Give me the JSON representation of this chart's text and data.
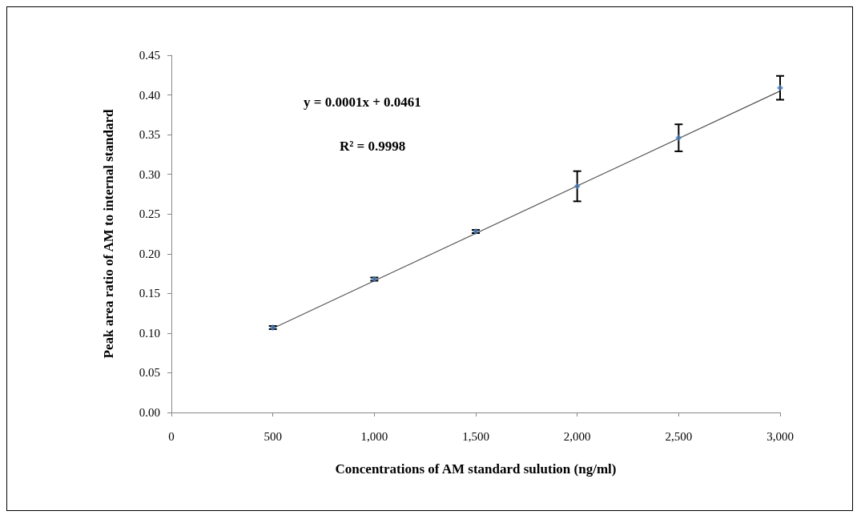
{
  "chart_data": {
    "type": "scatter",
    "xlabel": "Concentrations of AM standard sulution (ng/ml)",
    "ylabel": "Peak area ratio of AM to internal standard",
    "annotations": [
      "y = 0.0001x + 0.0461",
      "R² = 0.9998"
    ],
    "series": [
      {
        "color": "#4f81bd",
        "marker": "diamond",
        "x": [
          500,
          1000,
          1500,
          2000,
          2500,
          3000
        ],
        "values": [
          0.107,
          0.168,
          0.228,
          0.285,
          0.346,
          0.409
        ],
        "errors": [
          0.002,
          0.002,
          0.002,
          0.019,
          0.017,
          0.015
        ]
      },
      {
        "type": "line",
        "color": "#555555",
        "marker": "none",
        "x": [
          500,
          3000
        ],
        "values": [
          0.106,
          0.405
        ]
      }
    ],
    "xlim": [
      0,
      3000
    ],
    "xticks": [
      0,
      500,
      {
        "value": 1000,
        "label": "1,000"
      },
      {
        "value": 1500,
        "label": "1,500"
      },
      {
        "value": 2000,
        "label": "2,000"
      },
      {
        "value": 2500,
        "label": "2,500"
      },
      {
        "value": 3000,
        "label": "3,000"
      }
    ],
    "ylim": [
      0,
      0.45
    ],
    "yticks": [
      {
        "value": 0,
        "label": "0.00"
      },
      {
        "value": 0.05,
        "label": "0.05"
      },
      {
        "value": 0.1,
        "label": "0.10"
      },
      {
        "value": 0.15,
        "label": "0.15"
      },
      {
        "value": 0.2,
        "label": "0.20"
      },
      {
        "value": 0.25,
        "label": "0.25"
      },
      {
        "value": 0.3,
        "label": "0.30"
      },
      {
        "value": 0.35,
        "label": "0.35"
      },
      {
        "value": 0.4,
        "label": "0.40"
      },
      {
        "value": 0.45,
        "label": "0.45"
      }
    ],
    "grid": false
  }
}
